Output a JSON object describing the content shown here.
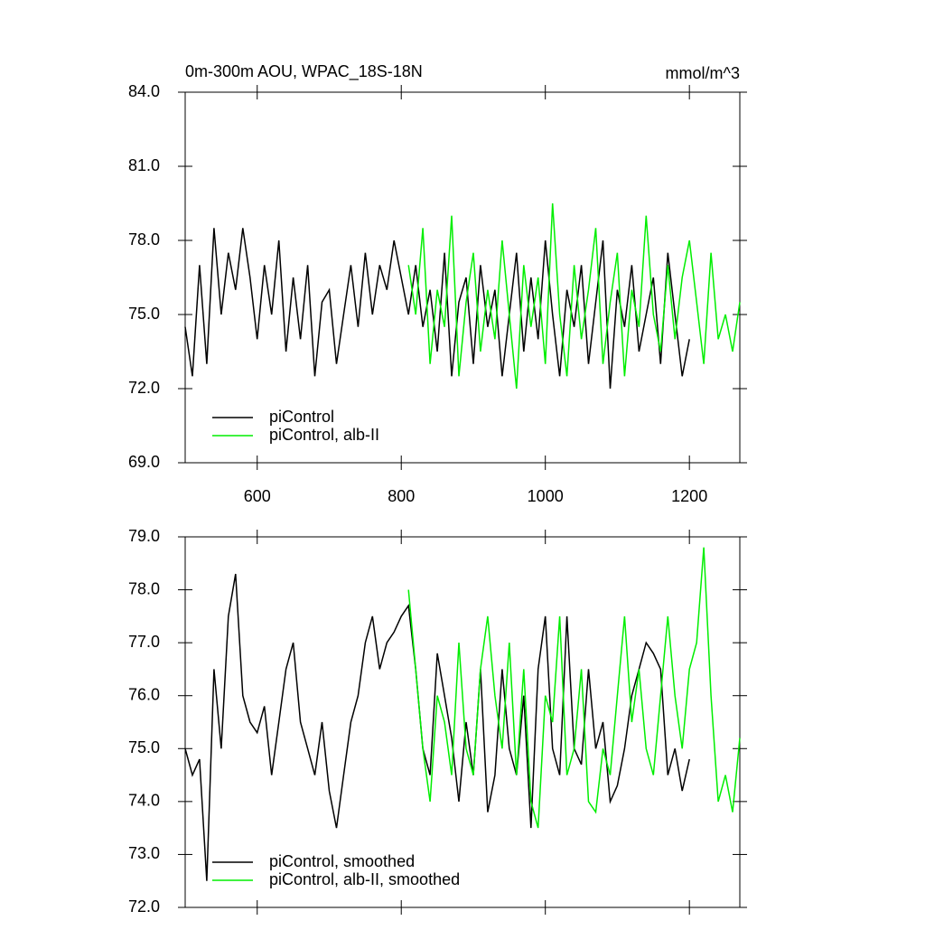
{
  "chart_data": [
    {
      "type": "line",
      "title": "0m-300m AOU, WPAC_18S-18N",
      "right_title": "mmol/m^3",
      "x": [
        500,
        510,
        520,
        530,
        540,
        550,
        560,
        570,
        580,
        590,
        600,
        610,
        620,
        630,
        640,
        650,
        660,
        670,
        680,
        690,
        700,
        710,
        720,
        730,
        740,
        750,
        760,
        770,
        780,
        790,
        800,
        810,
        820,
        830,
        840,
        850,
        860,
        870,
        880,
        890,
        900,
        910,
        920,
        930,
        940,
        950,
        960,
        970,
        980,
        990,
        1000,
        1010,
        1020,
        1030,
        1040,
        1050,
        1060,
        1070,
        1080,
        1090,
        1100,
        1110,
        1120,
        1130,
        1140,
        1150,
        1160,
        1170,
        1180,
        1190,
        1200,
        1210,
        1220,
        1230,
        1240,
        1250,
        1260,
        1270
      ],
      "xlim": [
        500,
        1270
      ],
      "xticks": [
        600,
        800,
        1000,
        1200
      ],
      "ylim": [
        69,
        84
      ],
      "yticks": [
        {
          "value": 69,
          "label": "69.0"
        },
        {
          "value": 72,
          "label": "72.0"
        },
        {
          "value": 75,
          "label": "75.0"
        },
        {
          "value": 78,
          "label": "78.0"
        },
        {
          "value": 81,
          "label": "81.0"
        },
        {
          "value": 84,
          "label": "84.0"
        }
      ],
      "legend": "lower left",
      "series": [
        {
          "name": "piControl",
          "color": "#000000",
          "values": [
            74.5,
            72.5,
            77,
            73,
            78.5,
            75,
            77.5,
            76,
            78.5,
            76.5,
            74,
            77,
            75,
            78,
            73.5,
            76.5,
            74,
            77,
            72.5,
            75.5,
            76,
            73,
            75,
            77,
            74.5,
            77.5,
            75,
            77,
            76,
            78,
            76.5,
            75,
            77,
            74.5,
            76,
            73.5,
            77.5,
            72.5,
            75.5,
            76.5,
            73,
            77,
            74.5,
            76,
            72.5,
            75,
            77.5,
            73.5,
            76.5,
            74,
            78,
            75,
            72.5,
            76,
            74.5,
            77,
            73,
            75.5,
            78,
            72,
            76,
            74.5,
            77,
            73.5,
            75,
            76.5,
            73,
            77.5,
            75,
            72.5,
            74,
            null,
            null,
            null,
            null,
            null,
            null,
            null
          ]
        },
        {
          "name": "piControl, alb-II",
          "color": "#00ee00",
          "values": [
            null,
            null,
            null,
            null,
            null,
            null,
            null,
            null,
            null,
            null,
            null,
            null,
            null,
            null,
            null,
            null,
            null,
            null,
            null,
            null,
            null,
            null,
            null,
            null,
            null,
            null,
            null,
            null,
            null,
            null,
            null,
            77,
            75,
            78.5,
            73,
            76,
            74.5,
            79,
            72.5,
            75.5,
            77.5,
            73.5,
            76,
            74,
            78,
            75,
            72,
            77,
            74.5,
            76.5,
            73,
            79.5,
            75,
            72.5,
            77,
            74,
            76,
            78.5,
            73,
            75.5,
            77.5,
            72.5,
            76,
            74.5,
            79,
            75,
            73.5,
            77,
            74,
            76.5,
            78,
            75.5,
            73,
            77.5,
            74,
            75,
            73.5,
            75.5
          ]
        }
      ]
    },
    {
      "type": "line",
      "x": [
        500,
        510,
        520,
        530,
        540,
        550,
        560,
        570,
        580,
        590,
        600,
        610,
        620,
        630,
        640,
        650,
        660,
        670,
        680,
        690,
        700,
        710,
        720,
        730,
        740,
        750,
        760,
        770,
        780,
        790,
        800,
        810,
        820,
        830,
        840,
        850,
        860,
        870,
        880,
        890,
        900,
        910,
        920,
        930,
        940,
        950,
        960,
        970,
        980,
        990,
        1000,
        1010,
        1020,
        1030,
        1040,
        1050,
        1060,
        1070,
        1080,
        1090,
        1100,
        1110,
        1120,
        1130,
        1140,
        1150,
        1160,
        1170,
        1180,
        1190,
        1200,
        1210,
        1220,
        1230,
        1240,
        1250,
        1260,
        1270
      ],
      "xlim": [
        500,
        1270
      ],
      "xticks": [
        600,
        800,
        1000,
        1200
      ],
      "ylim": [
        72,
        79
      ],
      "yticks": [
        {
          "value": 72,
          "label": "72.0"
        },
        {
          "value": 73,
          "label": "73.0"
        },
        {
          "value": 74,
          "label": "74.0"
        },
        {
          "value": 75,
          "label": "75.0"
        },
        {
          "value": 76,
          "label": "76.0"
        },
        {
          "value": 77,
          "label": "77.0"
        },
        {
          "value": 78,
          "label": "78.0"
        },
        {
          "value": 79,
          "label": "79.0"
        }
      ],
      "legend": "lower left",
      "series": [
        {
          "name": "piControl, smoothed",
          "color": "#000000",
          "values": [
            75,
            74.5,
            74.8,
            72.5,
            76.5,
            75,
            77.5,
            78.3,
            76,
            75.5,
            75.3,
            75.8,
            74.5,
            75.5,
            76.5,
            77,
            75.5,
            75,
            74.5,
            75.5,
            74.2,
            73.5,
            74.5,
            75.5,
            76,
            77,
            77.5,
            76.5,
            77,
            77.2,
            77.5,
            77.7,
            76.5,
            75,
            74.5,
            76.8,
            76,
            75.2,
            74,
            75.5,
            74.5,
            76.5,
            73.8,
            74.5,
            76.5,
            75,
            74.5,
            76,
            73.5,
            76.5,
            77.5,
            75,
            74.5,
            77.5,
            75,
            74.7,
            76.5,
            75,
            75.5,
            74,
            74.3,
            75,
            76,
            76.5,
            77,
            76.8,
            76.5,
            74.5,
            75,
            74.2,
            74.8,
            null,
            null,
            null,
            null,
            null,
            null,
            null
          ]
        },
        {
          "name": "piControl, alb-II, smoothed",
          "color": "#00ee00",
          "values": [
            null,
            null,
            null,
            null,
            null,
            null,
            null,
            null,
            null,
            null,
            null,
            null,
            null,
            null,
            null,
            null,
            null,
            null,
            null,
            null,
            null,
            null,
            null,
            null,
            null,
            null,
            null,
            null,
            null,
            null,
            null,
            78,
            76.5,
            75,
            74,
            76,
            75.5,
            74.5,
            77,
            75,
            74.5,
            76.5,
            77.5,
            76,
            75,
            77,
            74.5,
            76.5,
            74,
            73.5,
            76,
            75.5,
            77.5,
            74.5,
            75,
            76.5,
            74,
            73.8,
            75,
            74.5,
            76,
            77.5,
            75.5,
            76.5,
            75,
            74.5,
            76,
            77.5,
            76,
            75,
            76.5,
            77,
            78.8,
            76,
            74,
            74.5,
            73.8,
            75.2
          ]
        }
      ]
    }
  ]
}
